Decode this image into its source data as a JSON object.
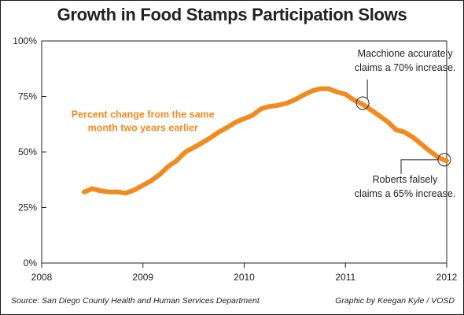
{
  "chart_data": {
    "type": "line",
    "title": "Growth in Food Stamps Participation Slows",
    "series_label": [
      "Percent change from the same",
      "month two years earlier"
    ],
    "xlabel": "",
    "ylabel": "",
    "xlim": [
      2008,
      2012
    ],
    "ylim": [
      0,
      100
    ],
    "x_ticks": [
      2008,
      2009,
      2010,
      2011,
      2012
    ],
    "y_ticks": [
      0,
      25,
      50,
      75,
      100
    ],
    "y_tick_labels": [
      "0%",
      "25%",
      "50%",
      "75%",
      "100%"
    ],
    "grid": false,
    "line_color": "#f28a1e",
    "series": [
      {
        "x": [
          2008.42,
          2008.5,
          2008.58,
          2008.67,
          2008.75,
          2008.83,
          2008.92,
          2009.0,
          2009.08,
          2009.17,
          2009.25,
          2009.33,
          2009.42,
          2009.5,
          2009.58,
          2009.67,
          2009.75,
          2009.83,
          2009.92,
          2010.0,
          2010.08,
          2010.17,
          2010.25,
          2010.33,
          2010.42,
          2010.5,
          2010.58,
          2010.67,
          2010.75,
          2010.83,
          2010.92,
          2011.0,
          2011.08,
          2011.17,
          2011.25,
          2011.33,
          2011.42,
          2011.5,
          2011.58,
          2011.67,
          2011.75,
          2011.83,
          2011.92,
          2012.0
        ],
        "y": [
          32,
          33.5,
          32.5,
          32,
          32,
          31.5,
          33,
          35,
          37,
          40,
          43.5,
          46,
          50,
          52,
          54,
          56.5,
          59,
          61,
          63.5,
          65,
          66.5,
          69.5,
          70.5,
          71,
          72,
          73.5,
          75.5,
          77.5,
          78.5,
          78.5,
          77,
          76,
          73.5,
          71.5,
          69,
          66.5,
          63.5,
          60,
          59,
          56.5,
          53.5,
          50.5,
          47.5,
          46
        ]
      }
    ],
    "annotations": [
      {
        "text": [
          "Macchione accurately",
          "claims a 70% increase."
        ],
        "x": 2011.17,
        "y": 72
      },
      {
        "text": [
          "Roberts falsely",
          "claims a 65% increase."
        ],
        "x": 2012.0,
        "y": 46.5
      }
    ]
  },
  "footer": {
    "source": "Source: San Diego County Health and Human Services Department",
    "credit": "Graphic by Keegan Kyle / VOSD"
  }
}
